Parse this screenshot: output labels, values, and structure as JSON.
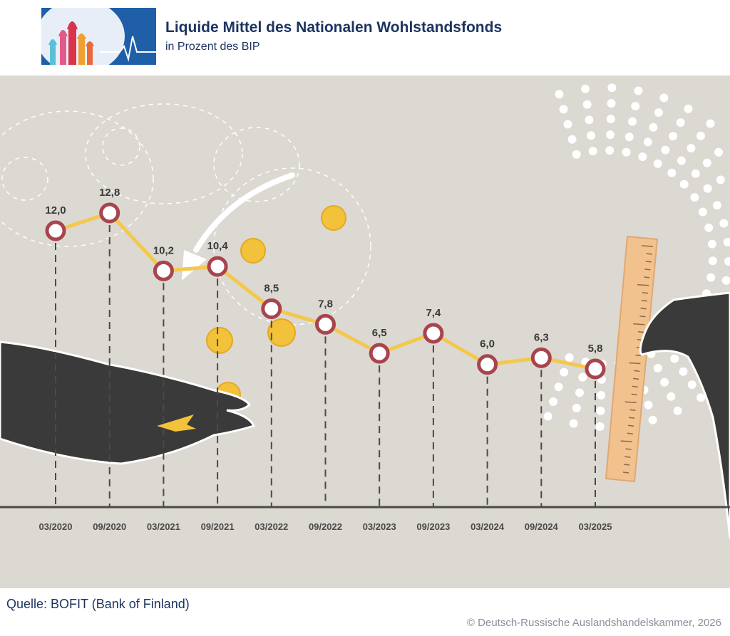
{
  "header": {
    "title": "Liquide Mittel des Nationalen Wohlstandsfonds",
    "subtitle": "in Prozent des BIP"
  },
  "footer": {
    "source": "Quelle: BOFIT (Bank of Finland)",
    "copyright": "© Deutsch-Russische Auslandshandelskammer, 2026"
  },
  "colors": {
    "line": "#f4c84a",
    "marker_ring": "#a8444e",
    "background": "#dcd8d2",
    "title": "#1d3461"
  },
  "chart_data": {
    "type": "line",
    "title": "Liquide Mittel des Nationalen Wohlstandsfonds",
    "subtitle": "in Prozent des BIP",
    "xlabel": "",
    "ylabel": "in Prozent des BIP",
    "categories": [
      "03/2020",
      "09/2020",
      "03/2021",
      "09/2021",
      "03/2022",
      "09/2022",
      "03/2023",
      "09/2023",
      "03/2024",
      "09/2024",
      "03/2025"
    ],
    "values": [
      12.0,
      12.8,
      10.2,
      10.4,
      8.5,
      7.8,
      6.5,
      7.4,
      6.0,
      6.3,
      5.8
    ],
    "labels": [
      "12,0",
      "12,8",
      "10,2",
      "10,4",
      "8,5",
      "7,8",
      "6,5",
      "7,4",
      "6,0",
      "6,3",
      "5,8"
    ],
    "ylim": [
      5.0,
      13.5
    ],
    "grid": false,
    "legend": "none"
  }
}
